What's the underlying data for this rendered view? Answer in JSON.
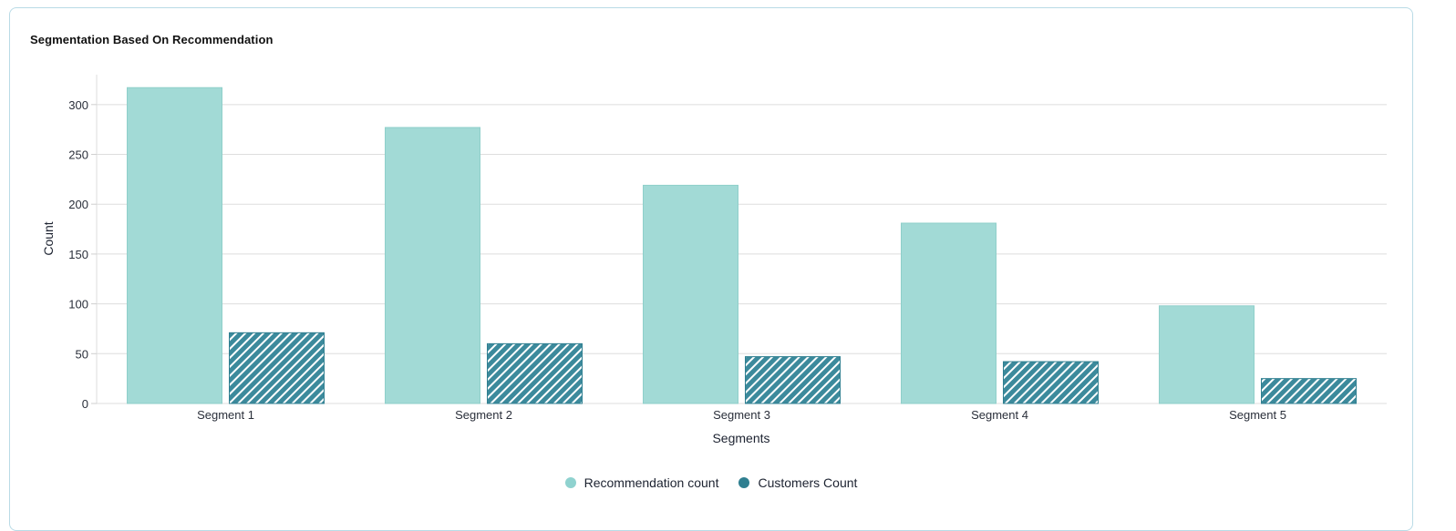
{
  "card": {
    "title": "Segmentation Based On Recommendation"
  },
  "chart_data": {
    "type": "bar",
    "categories": [
      "Segment 1",
      "Segment 2",
      "Segment 3",
      "Segment 4",
      "Segment 5"
    ],
    "series": [
      {
        "name": "Recommendation count",
        "values": [
          317,
          277,
          219,
          181,
          98
        ],
        "color": "#a2dad6",
        "pattern": "solid"
      },
      {
        "name": "Customers Count",
        "values": [
          71,
          60,
          47,
          42,
          25
        ],
        "color": "#3c8a9c",
        "pattern": "diagonal-hatch"
      }
    ],
    "title": "",
    "xlabel": "Segments",
    "ylabel": "Count",
    "ylim": [
      0,
      330
    ],
    "yticks": [
      0,
      50,
      100,
      150,
      200,
      250,
      300
    ],
    "grid": true,
    "legend_position": "bottom-center"
  }
}
